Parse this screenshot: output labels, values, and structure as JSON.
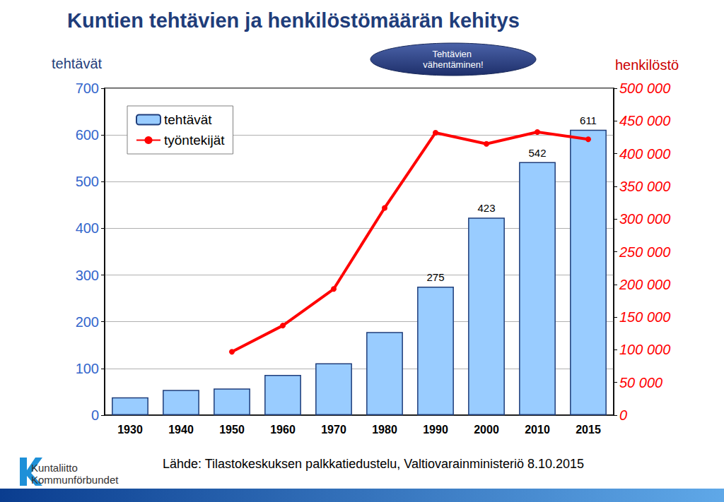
{
  "chart_data": {
    "type": "bar",
    "title": "Kuntien tehtävien ja henkilöstömäärän kehitys",
    "annotations": [
      "Tehtävien vähentäminen!"
    ],
    "source": "Lähde: Tilastokeskuksen palkkatiedustelu, Valtiovarainministeriö 8.10.2015",
    "logo": [
      "Kuntaliitto",
      "Kommunförbundet"
    ],
    "y_label": "tehtävät",
    "y2_label": "henkilöstö",
    "categories": [
      "1930",
      "1940",
      "1950",
      "1960",
      "1970",
      "1980",
      "1990",
      "2000",
      "2010",
      "2015"
    ],
    "series": [
      {
        "name": "tehtävät",
        "type": "bar",
        "color": "#99ccff",
        "values": [
          38,
          54,
          57,
          86,
          111,
          178,
          275,
          423,
          542,
          611
        ],
        "data_labels": true,
        "value_labels": [
          null,
          null,
          null,
          null,
          null,
          null,
          "275",
          "423",
          "542",
          "611"
        ]
      },
      {
        "name": "työntekijät",
        "type": "line",
        "color": "#ff0000",
        "axis": "y2",
        "marker": "circle",
        "values": [
          null,
          null,
          97000,
          137000,
          193000,
          317000,
          432000,
          415000,
          433000,
          422000
        ]
      }
    ],
    "ylim": [
      0,
      700
    ],
    "yticks": [
      0,
      100,
      200,
      300,
      400,
      500,
      600,
      700
    ],
    "y2lim": [
      0,
      500000
    ],
    "y2ticks": [
      0,
      {
        "value": 50000,
        "label": "50 000"
      },
      {
        "value": 100000,
        "label": "100 000"
      },
      {
        "value": 150000,
        "label": "150 000"
      },
      {
        "value": 200000,
        "label": "200 000"
      },
      {
        "value": 250000,
        "label": "250 000"
      },
      {
        "value": 300000,
        "label": "300 000"
      },
      {
        "value": 350000,
        "label": "350 000"
      },
      {
        "value": 400000,
        "label": "400 000"
      },
      {
        "value": 450000,
        "label": "450 000"
      },
      {
        "value": 500000,
        "label": "500 000"
      }
    ],
    "grid": true,
    "legend": "top-left"
  }
}
